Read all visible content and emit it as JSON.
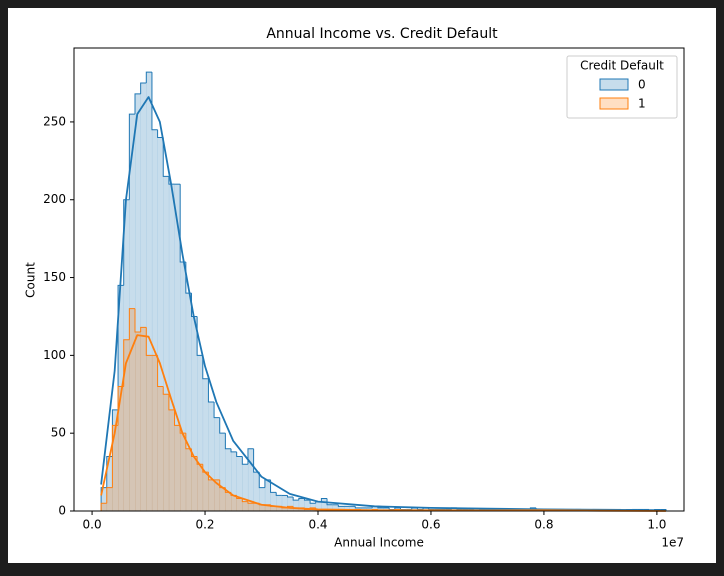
{
  "chart_data": {
    "type": "histogram",
    "title": "Annual Income vs. Credit Default",
    "x_label": "Annual Income",
    "y_label": "Count",
    "x_offset_label": "1e7",
    "legend_title": "Credit Default",
    "legend_position": "upper right",
    "xlim": [
      -0.032,
      1.048
    ],
    "ylim": [
      0,
      297.5
    ],
    "xticks": [
      {
        "value": 0,
        "label": "0.0"
      },
      0.2,
      0.4,
      0.6,
      0.8,
      {
        "value": 1,
        "label": "1.0"
      }
    ],
    "yticks": [
      0,
      50,
      100,
      150,
      200,
      250
    ],
    "bins": [
      0.016,
      0.026,
      0.036,
      0.046,
      0.056,
      0.066,
      0.076,
      0.086,
      0.096,
      0.106,
      0.116,
      0.126,
      0.136,
      0.146,
      0.156,
      0.166,
      0.176,
      0.186,
      0.196,
      0.206,
      0.216,
      0.226,
      0.236,
      0.246,
      0.256,
      0.266,
      0.276,
      0.286,
      0.296,
      0.306,
      0.316,
      0.326,
      0.336,
      0.346,
      0.356,
      0.366,
      0.376,
      0.386,
      0.396,
      0.406,
      0.416,
      0.426,
      0.436,
      0.446,
      0.456,
      0.466,
      0.476,
      0.486,
      0.496,
      0.506,
      0.516,
      0.526,
      0.536,
      0.546,
      0.556,
      0.566,
      0.576,
      0.586,
      0.596,
      0.606,
      0.616,
      0.626,
      0.636,
      0.646,
      0.656,
      0.666,
      0.676,
      0.686,
      0.696,
      0.706,
      0.716,
      0.726,
      0.736,
      0.746,
      0.756,
      0.766,
      0.776,
      0.786,
      0.796,
      0.806,
      0.816,
      0.826,
      0.836,
      0.846,
      0.856,
      0.866,
      0.876,
      0.886,
      0.896,
      0.906,
      0.916,
      0.926,
      0.936,
      0.946,
      0.956,
      0.966,
      0.976,
      0.986,
      0.996,
      1.006,
      1.016
    ],
    "kde_x": [
      0.016,
      0.04,
      0.06,
      0.08,
      0.1,
      0.12,
      0.14,
      0.16,
      0.18,
      0.2,
      0.22,
      0.25,
      0.3,
      0.35,
      0.4,
      0.5,
      0.6,
      0.7,
      0.8,
      0.9,
      1.016
    ],
    "series": [
      {
        "name": "0",
        "color": "#1f77b4",
        "values": [
          15,
          35,
          65,
          145,
          200,
          255,
          268,
          275,
          282,
          245,
          240,
          215,
          210,
          210,
          160,
          140,
          125,
          100,
          85,
          70,
          60,
          50,
          40,
          38,
          35,
          30,
          40,
          25,
          15,
          20,
          12,
          10,
          10,
          9,
          7,
          8,
          7,
          5,
          6,
          8,
          4,
          4,
          3,
          3,
          3,
          2,
          2,
          2,
          3,
          2,
          2,
          1,
          2,
          1,
          1,
          2,
          1,
          2,
          1,
          1,
          1,
          1,
          2,
          1,
          1,
          1,
          0,
          1,
          1,
          1,
          1,
          1,
          0,
          1,
          1,
          1,
          2,
          1,
          1,
          1,
          1,
          1,
          0,
          1,
          1,
          0,
          1,
          1,
          1,
          1,
          1,
          1,
          0,
          1,
          1,
          1,
          1,
          0,
          1,
          1
        ],
        "kde": [
          17,
          90,
          200,
          255,
          266,
          250,
          210,
          165,
          125,
          93,
          70,
          45,
          22,
          11,
          6,
          3,
          2,
          1.5,
          1,
          0.8,
          0.5
        ]
      },
      {
        "name": "1",
        "color": "#ff7f0e",
        "values": [
          5,
          15,
          55,
          80,
          110,
          130,
          115,
          118,
          100,
          100,
          80,
          75,
          65,
          55,
          50,
          40,
          35,
          30,
          25,
          20,
          20,
          15,
          12,
          10,
          8,
          6,
          5,
          5,
          4,
          4,
          3,
          3,
          2,
          3,
          2,
          2,
          1,
          2,
          1,
          1,
          1,
          1,
          1,
          0,
          1,
          1,
          0,
          0,
          1,
          0,
          0,
          0,
          1,
          0,
          0,
          0,
          0,
          0,
          0,
          0,
          0,
          0,
          0,
          0,
          0,
          0,
          0,
          0,
          0,
          0,
          0,
          0,
          0,
          0,
          0,
          0,
          0,
          1,
          0,
          0,
          0,
          0,
          0,
          0,
          0,
          0,
          0,
          0,
          0,
          0,
          0,
          0,
          0,
          0,
          0,
          0,
          0,
          0,
          0,
          0
        ],
        "kde": [
          10,
          50,
          95,
          113,
          112,
          95,
          72,
          50,
          35,
          25,
          18,
          10,
          4,
          2,
          1,
          0.5,
          0.5,
          0.3,
          0.5,
          0.2,
          0
        ]
      }
    ]
  }
}
